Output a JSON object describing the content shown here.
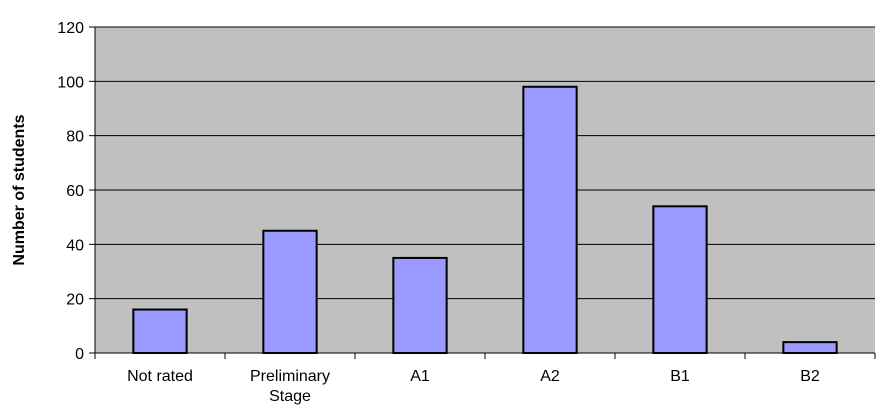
{
  "chart_data": {
    "type": "bar",
    "title": "",
    "xlabel": "",
    "ylabel": "Number of students",
    "ylim": [
      0,
      120
    ],
    "yticks": [
      0,
      20,
      40,
      60,
      80,
      100,
      120
    ],
    "grid": true,
    "categories": [
      [
        "Not rated"
      ],
      [
        "Preliminary",
        "Stage"
      ],
      [
        "A1"
      ],
      [
        "A2"
      ],
      [
        "B1"
      ],
      [
        "B2"
      ]
    ],
    "values": [
      16,
      45,
      35,
      98,
      54,
      4
    ],
    "colors": {
      "plot_background": "#c0c0c0",
      "bar_fill": "#9999ff",
      "bar_stroke": "#000000",
      "gridline": "#000000"
    }
  }
}
